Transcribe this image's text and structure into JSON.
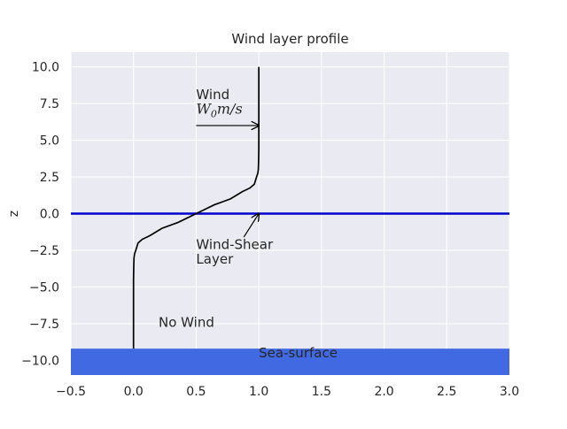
{
  "chart_data": {
    "type": "line",
    "title": "Wind layer profile",
    "xlabel": "",
    "ylabel": "z",
    "xlim": [
      -0.5,
      3.0
    ],
    "ylim": [
      -11.0,
      11.0
    ],
    "xticks": [
      "−0.5",
      "0.0",
      "0.5",
      "1.0",
      "1.5",
      "2.0",
      "2.5",
      "3.0"
    ],
    "xtick_values": [
      -0.5,
      0.0,
      0.5,
      1.0,
      1.5,
      2.0,
      2.5,
      3.0
    ],
    "yticks": [
      "10.0",
      "7.5",
      "5.0",
      "2.5",
      "0.0",
      "−2.5",
      "−5.0",
      "−7.5",
      "−10.0"
    ],
    "ytick_values": [
      10.0,
      7.5,
      5.0,
      2.5,
      0.0,
      -2.5,
      -5.0,
      -7.5,
      -10.0
    ],
    "grid": true,
    "background": "#eaeaf2",
    "series": [
      {
        "color": "#000000",
        "profile": "0.5 + 0.5*tanh(z/1.5)",
        "x": [
          0.0,
          0.0,
          0.0,
          0.0,
          0.0,
          0.0,
          0.001,
          0.002,
          0.004,
          0.008,
          0.018,
          0.036,
          0.07,
          0.131,
          0.227,
          0.356,
          0.5,
          0.644,
          0.773,
          0.869,
          0.93,
          0.964,
          0.982,
          0.992,
          0.996,
          0.998,
          0.999,
          1.0,
          1.0,
          1.0,
          1.0,
          1.0,
          1.0,
          1.0,
          1.0,
          1.0,
          1.0,
          1.0,
          1.0,
          1.0
        ],
        "y": [
          -9.2,
          -8.0,
          -7.0,
          -6.0,
          -5.0,
          -4.5,
          -4.0,
          -3.5,
          -3.0,
          -2.75,
          -2.5,
          -2.0,
          -1.75,
          -1.5,
          -1.0,
          -0.6,
          0.0,
          0.6,
          1.0,
          1.5,
          1.75,
          2.0,
          2.5,
          2.75,
          3.0,
          3.5,
          4.0,
          4.5,
          5.0,
          5.5,
          6.0,
          6.5,
          7.0,
          7.5,
          8.0,
          8.5,
          9.0,
          9.5,
          9.8,
          10.0
        ]
      }
    ],
    "hline": {
      "y": 0.0,
      "color": "#0000cd"
    },
    "sea_surface": {
      "label": "Sea-surface",
      "y_top": -9.2,
      "color": "#4169e1"
    },
    "annotations": {
      "wind_word": "Wind",
      "wind_math_main": "W",
      "wind_math_sub": "0",
      "wind_math_unit": "m/s",
      "shear_line1": "Wind-Shear",
      "shear_line2": "Layer",
      "no_wind": "No Wind"
    },
    "arrows": [
      {
        "name": "wind-arrow",
        "from": [
          0.5,
          6.0
        ],
        "to": [
          1.0,
          6.0
        ]
      },
      {
        "name": "shear-arrow",
        "from": [
          0.88,
          -1.6
        ],
        "to": [
          1.0,
          0.0
        ]
      }
    ],
    "text_positions": {
      "wind_word": [
        0.5,
        7.8
      ],
      "wind_math": [
        0.5,
        6.8
      ],
      "shear_line1": [
        0.5,
        -2.4
      ],
      "shear_line2": [
        0.5,
        -3.4
      ],
      "no_wind": [
        0.2,
        -7.7
      ],
      "sea_surface": [
        1.0,
        -9.8
      ]
    }
  }
}
